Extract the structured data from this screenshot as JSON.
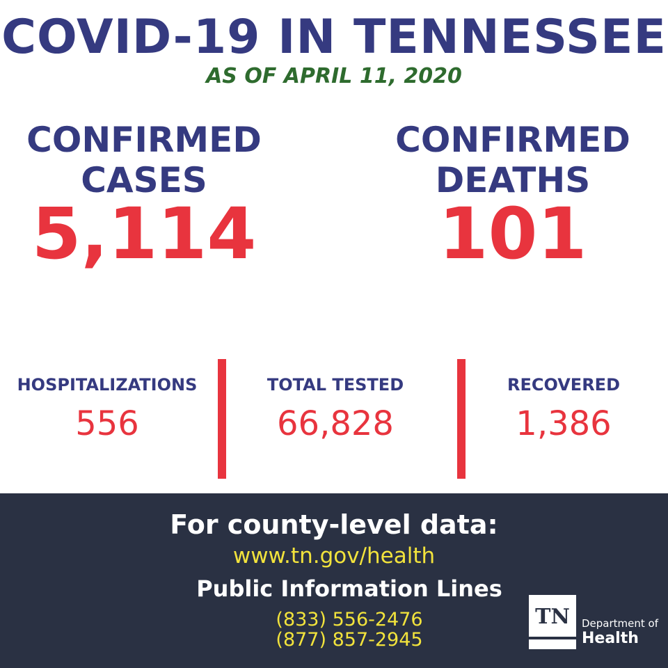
{
  "header": {
    "title": "COVID-19 IN TENNESSEE",
    "date": "AS OF APRIL 11, 2020"
  },
  "primary_stats": [
    {
      "label_line1": "CONFIRMED",
      "label_line2": "CASES",
      "value": "5,114"
    },
    {
      "label_line1": "CONFIRMED",
      "label_line2": "DEATHS",
      "value": "101"
    }
  ],
  "secondary_stats": [
    {
      "label": "HOSPITALIZATIONS",
      "value": "556"
    },
    {
      "label": "TOTAL TESTED",
      "value": "66,828"
    },
    {
      "label": "RECOVERED",
      "value": "1,386"
    }
  ],
  "footer": {
    "heading": "For county-level data:",
    "url": "www.tn.gov/health",
    "subheading": "Public Information Lines",
    "phones": [
      "(833) 556-2476",
      "(877) 857-2945"
    ]
  },
  "logo": {
    "mark": "TN",
    "line1": "Department of",
    "line2": "Health"
  },
  "colors": {
    "title_navy": "#353a80",
    "date_green": "#2e6b2e",
    "stat_red": "#e8343e",
    "footer_bg": "#2a3143",
    "footer_yellow": "#f2e33c"
  }
}
